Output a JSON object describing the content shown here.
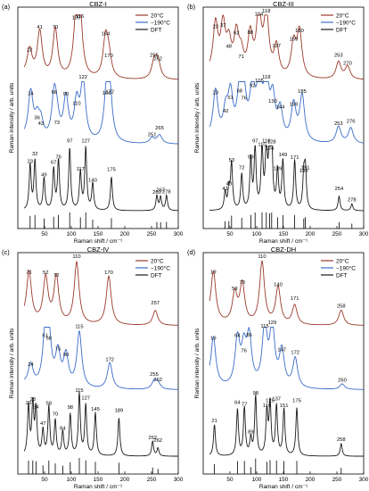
{
  "figure": {
    "panel_letters": [
      "(a)",
      "(b)",
      "(c)",
      "(d)"
    ],
    "legend_labels": [
      "20°C",
      "−190°C",
      "DFT"
    ],
    "colors": {
      "warm": "#9B3A2C",
      "cold": "#3A6DC8",
      "dft": "#1a1a1a"
    }
  },
  "chart_data": [
    {
      "type": "line",
      "panel": "(a)",
      "title": "CBZ-I",
      "xlabel": "Raman shift / cm⁻¹",
      "ylabel": "Raman intensity / arb. units",
      "xlim": [
        0,
        300
      ],
      "xticks": [
        50,
        100,
        150,
        200,
        250,
        300
      ],
      "legend_position": "top-right",
      "series": [
        {
          "name": "20°C",
          "peaks": [
            22,
            41,
            70,
            109,
            116,
            164,
            170,
            255,
            262
          ]
        },
        {
          "name": "−190°C",
          "peaks": [
            24,
            36,
            43,
            68,
            73,
            90,
            110,
            122,
            166,
            172,
            251,
            265
          ]
        },
        {
          "name": "DFT",
          "peaks": [
            23,
            32,
            49,
            67,
            76,
            97,
            117,
            127,
            140,
            175,
            260,
            267,
            278
          ]
        }
      ]
    },
    {
      "type": "line",
      "panel": "(b)",
      "title": "CBZ-III",
      "xlabel": "Raman shift / cm⁻¹",
      "ylabel": "Raman intensity / arb. units",
      "xlim": [
        0,
        300
      ],
      "xticks": [
        50,
        100,
        150,
        200,
        250,
        300
      ],
      "legend_position": "top-right",
      "series": [
        {
          "name": "20°C",
          "peaks": [
            23,
            37,
            48,
            62,
            71,
            88,
            104,
            118,
            137,
            169,
            180,
            253,
            270
          ]
        },
        {
          "name": "−190°C",
          "peaks": [
            23,
            42,
            51,
            68,
            76,
            92,
            105,
            118,
            130,
            144,
            169,
            185,
            253,
            276
          ]
        },
        {
          "name": "DFT",
          "peaks": [
            41,
            48,
            53,
            72,
            89,
            97,
            110,
            118,
            124,
            128,
            139,
            149,
            171,
            188,
            191,
            254,
            278
          ]
        }
      ]
    },
    {
      "type": "line",
      "panel": "(c)",
      "title": "CBZ-IV",
      "xlabel": "Raman shift / cm⁻¹",
      "ylabel": "Raman intensity / arb. units",
      "xlim": [
        0,
        300
      ],
      "xticks": [
        50,
        100,
        150,
        200,
        250,
        300
      ],
      "legend_position": "top-right",
      "series": [
        {
          "name": "20°C",
          "peaks": [
            21,
            52,
            72,
            110,
            170,
            257
          ]
        },
        {
          "name": "−190°C",
          "peaks": [
            24,
            51,
            58,
            75,
            90,
            115,
            172,
            255,
            262
          ]
        },
        {
          "name": "DFT",
          "peaks": [
            20,
            28,
            34,
            47,
            58,
            70,
            84,
            98,
            115,
            127,
            145,
            189,
            252,
            262
          ]
        }
      ]
    },
    {
      "type": "line",
      "panel": "(d)",
      "title": "CBZ-DH",
      "xlabel": "Raman shift / cm⁻¹",
      "ylabel": "Raman intensity / arb. units",
      "xlim": [
        0,
        300
      ],
      "xticks": [
        50,
        100,
        150,
        200,
        250,
        300
      ],
      "legend_position": "top-right",
      "series": [
        {
          "name": "20°C",
          "peaks": [
            19,
            59,
            73,
            110,
            140,
            171,
            258
          ]
        },
        {
          "name": "−190°C",
          "peaks": [
            19,
            64,
            76,
            86,
            115,
            129,
            147,
            172,
            260
          ]
        },
        {
          "name": "DFT",
          "peaks": [
            21,
            64,
            77,
            89,
            98,
            119,
            125,
            137,
            151,
            175,
            258
          ]
        }
      ]
    }
  ]
}
